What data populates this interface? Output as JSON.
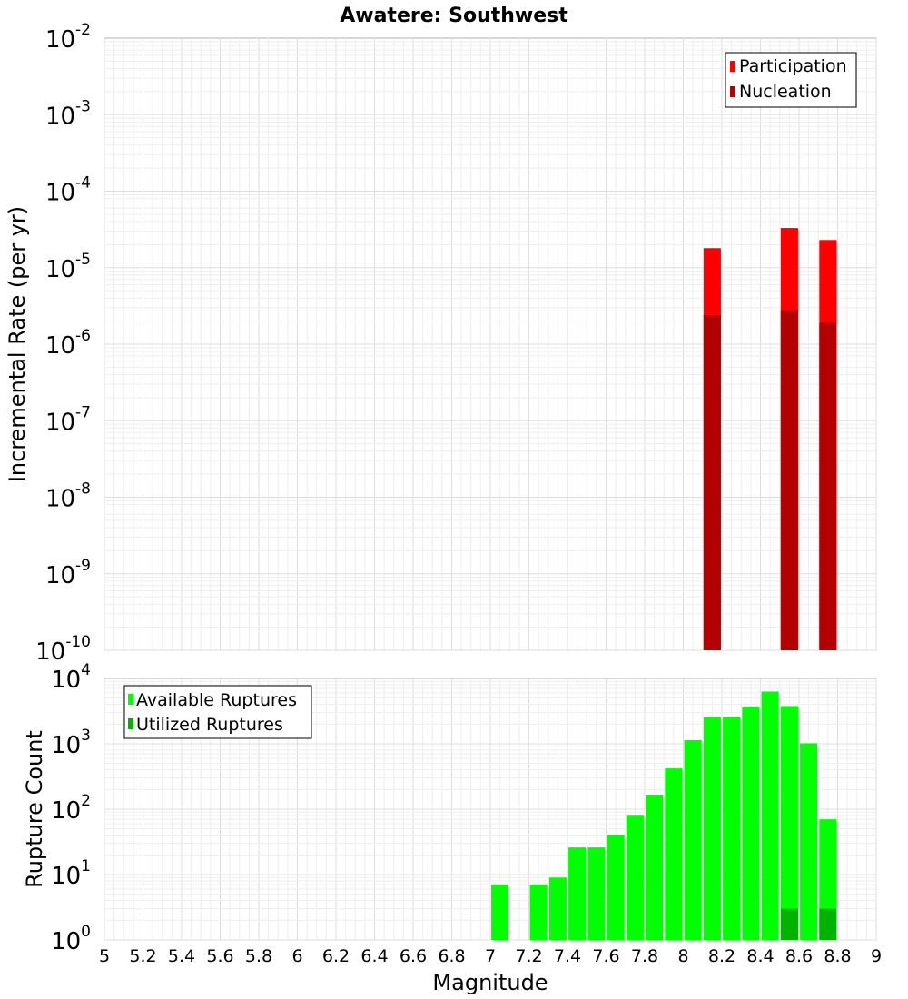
{
  "chart_data": [
    {
      "type": "bar",
      "panel": "top",
      "title": "Awatere: Southwest",
      "xlabel": "Magnitude",
      "ylabel": "Incremental Rate (per yr)",
      "yscale": "log",
      "ylim": [
        1e-10,
        0.01
      ],
      "xlim": [
        5,
        9
      ],
      "grid": true,
      "legend_position": "top-right",
      "ytick_bases": [
        "10",
        "10",
        "10",
        "10",
        "10",
        "10",
        "10",
        "10",
        "10"
      ],
      "ytick_exponents": [
        "-10",
        "-9",
        "-8",
        "-7",
        "-6",
        "-5",
        "-4",
        "-3",
        "-2"
      ],
      "bar_width": 0.09,
      "series": [
        {
          "name": "Participation",
          "color": "#ff0000",
          "x": [
            8.15,
            8.55,
            8.75
          ],
          "values": [
            1.8e-05,
            3.3e-05,
            2.3e-05
          ]
        },
        {
          "name": "Nucleation",
          "color": "#b30000",
          "x": [
            8.15,
            8.55,
            8.75
          ],
          "values": [
            2.4e-06,
            2.8e-06,
            1.9e-06
          ]
        }
      ]
    },
    {
      "type": "bar",
      "panel": "bottom",
      "xlabel": "Magnitude",
      "ylabel": "Rupture Count",
      "yscale": "log",
      "ylim": [
        1,
        10000
      ],
      "xlim": [
        5,
        9
      ],
      "grid": true,
      "legend_position": "top-left",
      "xticks": [
        "5",
        "5.2",
        "5.4",
        "5.6",
        "5.8",
        "6",
        "6.2",
        "6.4",
        "6.6",
        "6.8",
        "7",
        "7.2",
        "7.4",
        "7.6",
        "7.8",
        "8",
        "8.2",
        "8.4",
        "8.6",
        "8.8",
        "9"
      ],
      "ytick_bases": [
        "10",
        "10",
        "10",
        "10",
        "10"
      ],
      "ytick_exponents": [
        "0",
        "1",
        "2",
        "3",
        "4"
      ],
      "bar_width": 0.09,
      "series": [
        {
          "name": "Available Ruptures",
          "color": "#00ff00",
          "x": [
            7.05,
            7.25,
            7.35,
            7.45,
            7.55,
            7.65,
            7.75,
            7.85,
            7.95,
            8.05,
            8.15,
            8.25,
            8.35,
            8.45,
            8.55,
            8.65,
            8.75
          ],
          "values": [
            7,
            7,
            9,
            26,
            26,
            41,
            82,
            167,
            420,
            1140,
            2540,
            2610,
            3690,
            6300,
            3780,
            1020,
            70
          ]
        },
        {
          "name": "Utilized Ruptures",
          "color": "#00b300",
          "x": [
            8.15,
            8.55,
            8.75
          ],
          "values": [
            1,
            3,
            3
          ]
        }
      ]
    }
  ]
}
